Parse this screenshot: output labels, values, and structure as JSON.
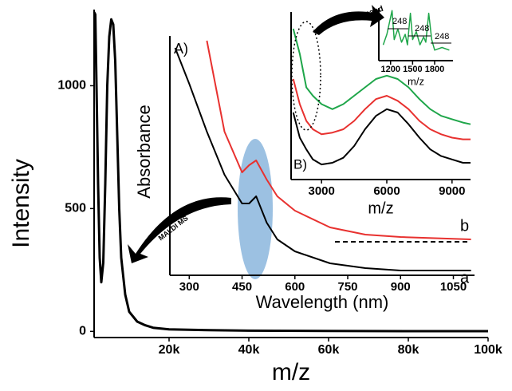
{
  "chart_data": [
    {
      "type": "line",
      "x_label": "m/z",
      "y_label": "Intensity",
      "x": [
        1200,
        1500,
        1800,
        2200,
        2600,
        3000,
        3500,
        4000,
        4500,
        5000,
        5500,
        6000,
        6500,
        7000,
        7500,
        8000,
        9000,
        10000,
        12000,
        14000,
        16000,
        20000,
        30000,
        40000,
        60000,
        80000,
        100000
      ],
      "series": [
        {
          "color": "#000000",
          "values": [
            1300,
            1290,
            1000,
            600,
            300,
            200,
            280,
            600,
            1000,
            1200,
            1270,
            1250,
            1100,
            800,
            500,
            300,
            150,
            80,
            40,
            25,
            15,
            8,
            5,
            3,
            2,
            1,
            1
          ]
        }
      ],
      "xlim": [
        1200,
        100000
      ],
      "ylim": [
        -25,
        1310
      ],
      "xticks": [
        {
          "value": 20000,
          "label": "20k"
        },
        {
          "value": 40000,
          "label": "40k"
        },
        {
          "value": 60000,
          "label": "60k"
        },
        {
          "value": 80000,
          "label": "80k"
        },
        {
          "value": 100000,
          "label": "100k"
        }
      ],
      "yticks": [
        0,
        500,
        1000
      ],
      "annotations": [
        "MALDI MS"
      ]
    },
    {
      "type": "line",
      "x_label": "Wavelength (nm)",
      "y_label": "Absorbance",
      "x": [
        260,
        300,
        350,
        400,
        450,
        470,
        490,
        520,
        550,
        600,
        700,
        800,
        900,
        1100
      ],
      "series": [
        {
          "name": "a",
          "color": "#000000",
          "values": [
            0.95,
            0.8,
            0.6,
            0.42,
            0.3,
            0.3,
            0.33,
            0.22,
            0.15,
            0.1,
            0.05,
            0.03,
            0.02,
            0.02
          ]
        },
        {
          "name": "b",
          "color": "#e8312f",
          "values": [
            null,
            null,
            0.98,
            0.6,
            0.43,
            0.46,
            0.48,
            0.4,
            0.33,
            0.27,
            0.2,
            0.17,
            0.16,
            0.15
          ]
        }
      ],
      "xlim": [
        245,
        1110
      ],
      "ylim": [
        0,
        1
      ],
      "xticks": [
        300,
        450,
        600,
        750,
        900,
        1050
      ],
      "annotations": [
        "A)"
      ]
    },
    {
      "type": "line",
      "x_label": "m/z",
      "x": [
        1700,
        2000,
        2300,
        2600,
        3000,
        3500,
        4000,
        4500,
        5000,
        5500,
        6000,
        6500,
        7000,
        7500,
        8000,
        8500,
        9000,
        9500,
        9850
      ],
      "series": [
        {
          "color": "#1fa64a",
          "values": [
            0.9,
            0.75,
            0.55,
            0.5,
            0.45,
            0.42,
            0.45,
            0.5,
            0.55,
            0.6,
            0.62,
            0.6,
            0.55,
            0.48,
            0.42,
            0.38,
            0.36,
            0.34,
            0.33
          ]
        },
        {
          "color": "#e8312f",
          "values": [
            0.6,
            0.45,
            0.35,
            0.3,
            0.27,
            0.28,
            0.3,
            0.35,
            0.42,
            0.48,
            0.5,
            0.47,
            0.42,
            0.35,
            0.3,
            0.27,
            0.25,
            0.24,
            0.24
          ]
        },
        {
          "color": "#000000",
          "values": [
            0.4,
            0.25,
            0.18,
            0.12,
            0.09,
            0.1,
            0.13,
            0.2,
            0.3,
            0.38,
            0.42,
            0.4,
            0.33,
            0.25,
            0.18,
            0.14,
            0.12,
            0.1,
            0.1
          ]
        }
      ],
      "xlim": [
        1600,
        9850
      ],
      "ylim": [
        0,
        1
      ],
      "xticks": [
        3000,
        6000,
        9000
      ],
      "annotations": [
        "B)"
      ]
    },
    {
      "type": "line",
      "x_label": "m/z",
      "x": [
        1100,
        1150,
        1220,
        1250,
        1300,
        1350,
        1400,
        1430,
        1470,
        1500,
        1550,
        1600,
        1650,
        1680,
        1720,
        1760,
        1800,
        1900,
        2000
      ],
      "series": [
        {
          "color": "#1fa64a",
          "values": [
            0.3,
            0.5,
            0.95,
            0.4,
            0.6,
            0.35,
            0.5,
            0.3,
            0.9,
            0.4,
            0.55,
            0.3,
            0.45,
            0.35,
            0.9,
            0.4,
            0.2,
            0.25,
            0.2
          ]
        }
      ],
      "xlim": [
        1040,
        2050
      ],
      "ylim": [
        0,
        1
      ],
      "xticks": [
        1200,
        1500,
        1800
      ],
      "annotations": [
        "248",
        "248",
        "248",
        "Expand"
      ]
    }
  ]
}
